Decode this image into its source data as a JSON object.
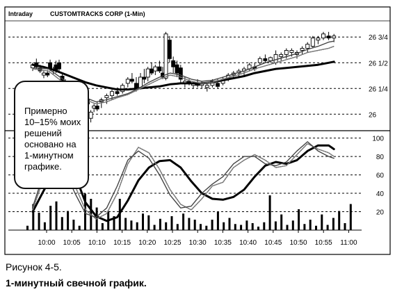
{
  "chart_data": {
    "type": "candlestick+line",
    "header": {
      "mode": "Intraday",
      "title": "CUSTOMTRACKS CORP (1-Min)"
    },
    "x_ticks": [
      "10:00",
      "10:05",
      "10:10",
      "10:15",
      "10:20",
      "10:25",
      "10:30",
      "10:35",
      "10:40",
      "10:45",
      "10:50",
      "10:55",
      "11:00"
    ],
    "price_panel": {
      "y_tick_labels": [
        "26 3/4",
        "26 1/2",
        "26 1/4",
        "26"
      ],
      "y_tick_values": [
        26.75,
        26.5,
        26.25,
        26.0
      ],
      "ylim": [
        25.86,
        26.88
      ],
      "candles": [
        {
          "t": 0,
          "o": 26.45,
          "h": 26.5,
          "l": 26.42,
          "c": 26.48,
          "bull": true
        },
        {
          "t": 0.7,
          "o": 26.5,
          "h": 26.54,
          "l": 26.44,
          "c": 26.46,
          "bull": false
        },
        {
          "t": 1.4,
          "o": 26.45,
          "h": 26.48,
          "l": 26.4,
          "c": 26.42,
          "bull": false
        },
        {
          "t": 2.1,
          "o": 26.38,
          "h": 26.42,
          "l": 26.35,
          "c": 26.4,
          "bull": true
        },
        {
          "t": 2.8,
          "o": 26.4,
          "h": 26.43,
          "l": 26.36,
          "c": 26.38,
          "bull": false
        },
        {
          "t": 3.3,
          "o": 26.5,
          "h": 26.53,
          "l": 26.42,
          "c": 26.44,
          "bull": false
        },
        {
          "t": 3.9,
          "o": 26.43,
          "h": 26.46,
          "l": 26.38,
          "c": 26.44,
          "bull": true
        },
        {
          "t": 4.4,
          "o": 26.48,
          "h": 26.52,
          "l": 26.4,
          "c": 26.42,
          "bull": false
        },
        {
          "t": 5.0,
          "o": 26.5,
          "h": 26.53,
          "l": 26.42,
          "c": 26.44,
          "bull": false
        },
        {
          "t": 5.6,
          "o": 26.37,
          "h": 26.4,
          "l": 26.3,
          "c": 26.32,
          "bull": false
        },
        {
          "t": 6.2,
          "o": 26.3,
          "h": 26.34,
          "l": 26.22,
          "c": 26.24,
          "bull": false
        },
        {
          "t": 6.8,
          "o": 26.22,
          "h": 26.26,
          "l": 26.15,
          "c": 26.17,
          "bull": false
        },
        {
          "t": 7.4,
          "o": 26.18,
          "h": 26.22,
          "l": 26.1,
          "c": 26.12,
          "bull": false
        },
        {
          "t": 8.0,
          "o": 26.1,
          "h": 26.15,
          "l": 26.02,
          "c": 26.04,
          "bull": false
        },
        {
          "t": 8.6,
          "o": 26.03,
          "h": 26.15,
          "l": 26.0,
          "c": 26.12,
          "bull": true
        },
        {
          "t": 9.2,
          "o": 26.12,
          "h": 26.16,
          "l": 26.04,
          "c": 26.06,
          "bull": false
        },
        {
          "t": 9.8,
          "o": 26.04,
          "h": 26.08,
          "l": 26.0,
          "c": 26.06,
          "bull": true
        },
        {
          "t": 10.4,
          "o": 26.1,
          "h": 26.16,
          "l": 26.04,
          "c": 26.14,
          "bull": true
        },
        {
          "t": 11.0,
          "o": 26.02,
          "h": 26.04,
          "l": 25.92,
          "c": 25.96,
          "bull": true
        },
        {
          "t": 11.6,
          "o": 26.06,
          "h": 26.1,
          "l": 26.02,
          "c": 26.08,
          "bull": true
        },
        {
          "t": 12.2,
          "o": 26.08,
          "h": 26.12,
          "l": 26.03,
          "c": 26.05,
          "bull": false
        },
        {
          "t": 13.0,
          "o": 26.12,
          "h": 26.16,
          "l": 26.06,
          "c": 26.14,
          "bull": true
        },
        {
          "t": 14.0,
          "o": 26.16,
          "h": 26.2,
          "l": 26.1,
          "c": 26.18,
          "bull": true
        },
        {
          "t": 15.0,
          "o": 26.18,
          "h": 26.24,
          "l": 26.14,
          "c": 26.22,
          "bull": true
        },
        {
          "t": 16.0,
          "o": 26.22,
          "h": 26.26,
          "l": 26.18,
          "c": 26.2,
          "bull": false
        },
        {
          "t": 17.0,
          "o": 26.22,
          "h": 26.3,
          "l": 26.2,
          "c": 26.28,
          "bull": true
        },
        {
          "t": 18.0,
          "o": 26.3,
          "h": 26.36,
          "l": 26.26,
          "c": 26.34,
          "bull": true
        },
        {
          "t": 18.8,
          "o": 26.34,
          "h": 26.4,
          "l": 26.3,
          "c": 26.32,
          "bull": false
        },
        {
          "t": 19.6,
          "o": 26.3,
          "h": 26.36,
          "l": 26.22,
          "c": 26.24,
          "bull": false
        },
        {
          "t": 20.4,
          "o": 26.26,
          "h": 26.4,
          "l": 26.24,
          "c": 26.36,
          "bull": true
        },
        {
          "t": 21.1,
          "o": 26.36,
          "h": 26.44,
          "l": 26.3,
          "c": 26.34,
          "bull": false
        },
        {
          "t": 21.8,
          "o": 26.36,
          "h": 26.46,
          "l": 26.32,
          "c": 26.44,
          "bull": true
        },
        {
          "t": 22.5,
          "o": 26.44,
          "h": 26.5,
          "l": 26.38,
          "c": 26.4,
          "bull": false
        },
        {
          "t": 23.2,
          "o": 26.42,
          "h": 26.48,
          "l": 26.38,
          "c": 26.46,
          "bull": true
        },
        {
          "t": 24.0,
          "o": 26.46,
          "h": 26.52,
          "l": 26.4,
          "c": 26.42,
          "bull": false
        },
        {
          "t": 24.6,
          "o": 26.4,
          "h": 26.46,
          "l": 26.34,
          "c": 26.36,
          "bull": false
        },
        {
          "t": 25.2,
          "o": 26.35,
          "h": 26.8,
          "l": 26.33,
          "c": 26.78,
          "bull": true
        },
        {
          "t": 25.9,
          "o": 26.72,
          "h": 26.76,
          "l": 26.5,
          "c": 26.54,
          "bull": false
        },
        {
          "t": 26.6,
          "o": 26.52,
          "h": 26.56,
          "l": 26.4,
          "c": 26.46,
          "bull": false
        },
        {
          "t": 27.3,
          "o": 26.48,
          "h": 26.52,
          "l": 26.36,
          "c": 26.4,
          "bull": false
        },
        {
          "t": 28.0,
          "o": 26.45,
          "h": 26.48,
          "l": 26.3,
          "c": 26.34,
          "bull": false
        },
        {
          "t": 28.8,
          "o": 26.3,
          "h": 26.36,
          "l": 26.26,
          "c": 26.32,
          "bull": true
        },
        {
          "t": 29.6,
          "o": 26.32,
          "h": 26.34,
          "l": 26.28,
          "c": 26.3,
          "bull": false
        },
        {
          "t": 30.4,
          "o": 26.28,
          "h": 26.32,
          "l": 26.25,
          "c": 26.3,
          "bull": true
        },
        {
          "t": 31.2,
          "o": 26.3,
          "h": 26.34,
          "l": 26.26,
          "c": 26.28,
          "bull": false
        },
        {
          "t": 32.0,
          "o": 26.28,
          "h": 26.32,
          "l": 26.25,
          "c": 26.3,
          "bull": true
        },
        {
          "t": 33.0,
          "o": 26.26,
          "h": 26.3,
          "l": 26.22,
          "c": 26.28,
          "bull": true
        },
        {
          "t": 34.0,
          "o": 26.28,
          "h": 26.34,
          "l": 26.26,
          "c": 26.32,
          "bull": true
        },
        {
          "t": 35.0,
          "o": 26.3,
          "h": 26.34,
          "l": 26.25,
          "c": 26.27,
          "bull": false
        },
        {
          "t": 36.0,
          "o": 26.3,
          "h": 26.36,
          "l": 26.28,
          "c": 26.34,
          "bull": true
        },
        {
          "t": 37.0,
          "o": 26.34,
          "h": 26.4,
          "l": 26.32,
          "c": 26.38,
          "bull": true
        },
        {
          "t": 38.0,
          "o": 26.38,
          "h": 26.42,
          "l": 26.34,
          "c": 26.4,
          "bull": true
        },
        {
          "t": 39.0,
          "o": 26.4,
          "h": 26.44,
          "l": 26.36,
          "c": 26.42,
          "bull": true
        },
        {
          "t": 40.0,
          "o": 26.42,
          "h": 26.46,
          "l": 26.38,
          "c": 26.44,
          "bull": true
        },
        {
          "t": 41.0,
          "o": 26.44,
          "h": 26.5,
          "l": 26.42,
          "c": 26.48,
          "bull": true
        },
        {
          "t": 42.0,
          "o": 26.46,
          "h": 26.5,
          "l": 26.42,
          "c": 26.44,
          "bull": false
        },
        {
          "t": 43.0,
          "o": 26.5,
          "h": 26.56,
          "l": 26.48,
          "c": 26.54,
          "bull": true
        },
        {
          "t": 44.0,
          "o": 26.54,
          "h": 26.58,
          "l": 26.5,
          "c": 26.52,
          "bull": false
        },
        {
          "t": 45.0,
          "o": 26.52,
          "h": 26.56,
          "l": 26.5,
          "c": 26.55,
          "bull": true
        },
        {
          "t": 46.0,
          "o": 26.5,
          "h": 26.62,
          "l": 26.48,
          "c": 26.58,
          "bull": true
        },
        {
          "t": 47.0,
          "o": 26.56,
          "h": 26.6,
          "l": 26.52,
          "c": 26.58,
          "bull": true
        },
        {
          "t": 48.0,
          "o": 26.58,
          "h": 26.64,
          "l": 26.54,
          "c": 26.62,
          "bull": true
        },
        {
          "t": 49.0,
          "o": 26.6,
          "h": 26.64,
          "l": 26.56,
          "c": 26.62,
          "bull": true
        },
        {
          "t": 50.0,
          "o": 26.58,
          "h": 26.62,
          "l": 26.54,
          "c": 26.6,
          "bull": true
        },
        {
          "t": 51.0,
          "o": 26.62,
          "h": 26.66,
          "l": 26.58,
          "c": 26.64,
          "bull": true
        },
        {
          "t": 52.0,
          "o": 26.64,
          "h": 26.7,
          "l": 26.6,
          "c": 26.68,
          "bull": true
        },
        {
          "t": 53.0,
          "o": 26.66,
          "h": 26.76,
          "l": 26.64,
          "c": 26.74,
          "bull": true
        },
        {
          "t": 54.0,
          "o": 26.72,
          "h": 26.76,
          "l": 26.68,
          "c": 26.74,
          "bull": true
        },
        {
          "t": 55.0,
          "o": 26.74,
          "h": 26.8,
          "l": 26.72,
          "c": 26.78,
          "bull": true
        },
        {
          "t": 56.0,
          "o": 26.76,
          "h": 26.8,
          "l": 26.72,
          "c": 26.74,
          "bull": false
        },
        {
          "t": 57.0,
          "o": 26.74,
          "h": 26.78,
          "l": 26.7,
          "c": 26.76,
          "bull": true
        }
      ],
      "moving_averages": [
        {
          "style": "thick",
          "t": [
            0,
            2,
            4,
            6,
            8,
            10,
            12,
            14,
            16,
            18,
            20,
            22,
            24,
            26,
            28,
            30,
            32,
            34,
            36,
            38,
            40,
            42,
            44,
            46,
            48,
            50,
            52,
            54,
            56,
            57
          ],
          "v": [
            26.48,
            26.46,
            26.43,
            26.39,
            26.35,
            26.31,
            26.28,
            26.26,
            26.24,
            26.24,
            26.25,
            26.26,
            26.27,
            26.29,
            26.3,
            26.3,
            26.3,
            26.31,
            26.33,
            26.35,
            26.37,
            26.4,
            26.42,
            26.44,
            26.45,
            26.46,
            26.47,
            26.48,
            26.5,
            26.51
          ]
        },
        {
          "style": "solid",
          "t": [
            0,
            3,
            6,
            9,
            12,
            14,
            16,
            18,
            20,
            22,
            24,
            26,
            28,
            30,
            32,
            34,
            36,
            38,
            40,
            42,
            44,
            46,
            48,
            50,
            52,
            54,
            56,
            57
          ],
          "v": [
            26.45,
            26.44,
            26.33,
            26.18,
            26.12,
            26.14,
            26.17,
            26.2,
            26.25,
            26.31,
            26.36,
            26.4,
            26.38,
            26.34,
            26.32,
            26.33,
            26.36,
            26.39,
            26.42,
            26.46,
            26.5,
            26.53,
            26.56,
            26.59,
            26.63,
            26.66,
            26.7,
            26.71
          ]
        },
        {
          "style": "dotted",
          "t": [
            0,
            3,
            6,
            9,
            12,
            14,
            16,
            18,
            20,
            22,
            24,
            26,
            28,
            30,
            32,
            34,
            36,
            38,
            40,
            42,
            44,
            46,
            48,
            50,
            52,
            54,
            56,
            57
          ],
          "v": [
            26.44,
            26.42,
            26.3,
            26.16,
            26.1,
            26.12,
            26.16,
            26.19,
            26.24,
            26.29,
            26.34,
            26.38,
            26.36,
            26.32,
            26.3,
            26.31,
            26.34,
            26.37,
            26.4,
            26.44,
            26.47,
            26.5,
            26.53,
            26.56,
            26.6,
            26.62,
            26.64,
            26.66
          ]
        }
      ]
    },
    "oscillator_panel": {
      "y_tick_labels": [
        "100",
        "80",
        "60",
        "40",
        "20"
      ],
      "y_tick_values": [
        100,
        80,
        60,
        40,
        20
      ],
      "ylim": [
        0,
        105
      ],
      "lines": [
        {
          "style": "thick",
          "t": [
            0,
            2,
            4,
            6,
            8,
            10,
            12,
            14,
            16,
            18,
            20,
            22,
            24,
            26,
            28,
            30,
            32,
            34,
            36,
            38,
            40,
            42,
            44,
            46,
            48,
            50,
            52,
            54,
            56,
            57
          ],
          "v": [
            20,
            42,
            62,
            72,
            60,
            30,
            15,
            10,
            14,
            32,
            54,
            68,
            75,
            76,
            68,
            53,
            40,
            34,
            33,
            36,
            44,
            58,
            70,
            74,
            72,
            76,
            86,
            92,
            92,
            88
          ]
        },
        {
          "style": "dotted",
          "t": [
            0,
            2,
            4,
            6,
            8,
            10,
            12,
            14,
            16,
            18,
            20,
            22,
            24,
            26,
            28,
            30,
            32,
            34,
            36,
            38,
            40,
            42,
            44,
            46,
            48,
            50,
            52,
            54,
            56,
            57
          ],
          "v": [
            22,
            55,
            78,
            70,
            48,
            22,
            12,
            18,
            40,
            72,
            90,
            84,
            66,
            44,
            28,
            22,
            34,
            48,
            52,
            68,
            76,
            82,
            76,
            68,
            70,
            82,
            94,
            88,
            84,
            80
          ]
        },
        {
          "style": "solid",
          "t": [
            0,
            2,
            4,
            6,
            8,
            10,
            12,
            14,
            16,
            18,
            20,
            22,
            24,
            26,
            28,
            30,
            32,
            34,
            36,
            38,
            40,
            42,
            44,
            46,
            48,
            50,
            52,
            54,
            56,
            57
          ],
          "v": [
            25,
            60,
            82,
            66,
            40,
            18,
            14,
            24,
            48,
            76,
            86,
            78,
            60,
            38,
            24,
            26,
            40,
            50,
            58,
            72,
            80,
            80,
            72,
            70,
            74,
            86,
            96,
            86,
            80,
            78
          ]
        }
      ],
      "volume_bars": [
        5,
        30,
        20,
        9,
        28,
        33,
        15,
        22,
        12,
        5,
        42,
        36,
        26,
        8,
        22,
        16,
        36,
        14,
        11,
        9,
        19,
        17,
        6,
        13,
        9,
        16,
        7,
        19,
        14,
        12,
        7,
        5,
        12,
        21,
        9,
        14,
        7,
        6,
        11,
        8,
        4,
        9,
        40,
        10,
        18,
        6,
        11,
        24,
        7,
        12,
        5,
        18,
        6,
        14,
        22,
        8,
        30
      ]
    }
  },
  "note_lines": [
    "Примерно",
    "10–15% моих",
    "решений",
    "основано на",
    "1-минутном",
    "графике."
  ],
  "caption": {
    "line1": "Рисунок 4-5.",
    "line2": "1-минутный свечной график."
  }
}
